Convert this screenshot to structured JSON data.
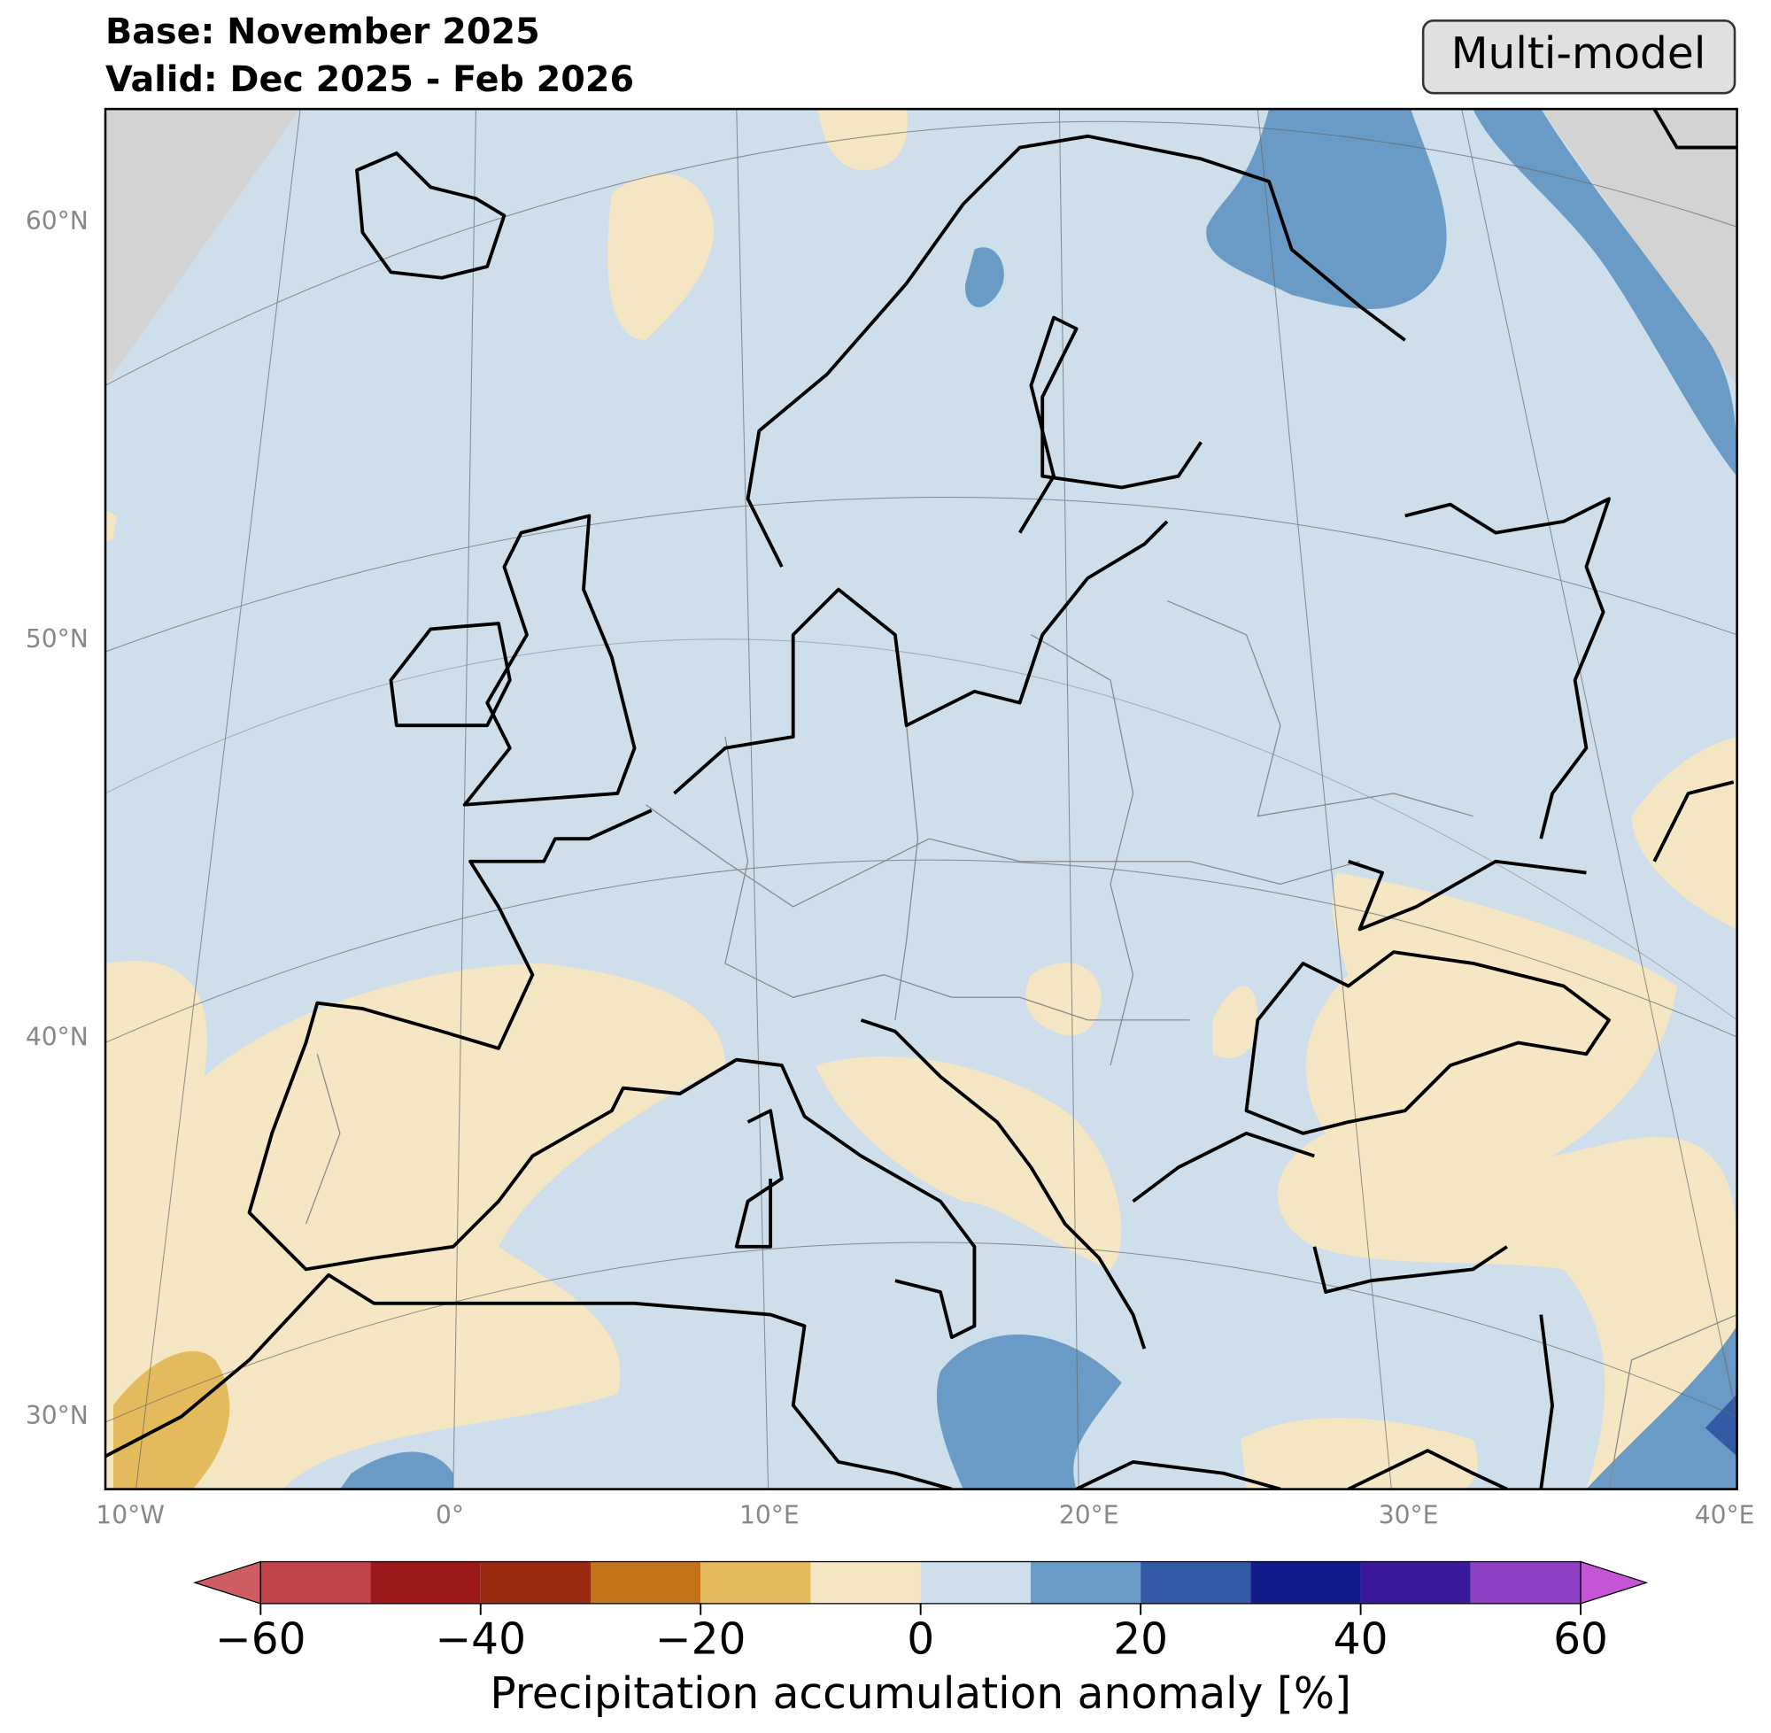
{
  "header": {
    "base": "Base: November 2025",
    "valid": "Valid: Dec 2025 - Feb 2026",
    "badge": "Multi-model"
  },
  "map": {
    "lat_labels": [
      {
        "value": 60,
        "label": "60°N"
      },
      {
        "value": 50,
        "label": "50°N"
      },
      {
        "value": 40,
        "label": "40°N"
      },
      {
        "value": 30,
        "label": "30°N"
      }
    ],
    "lon_labels": [
      {
        "value": -10,
        "label": "10°W"
      },
      {
        "value": 0,
        "label": "0°"
      },
      {
        "value": 10,
        "label": "10°E"
      },
      {
        "value": 20,
        "label": "20°E"
      },
      {
        "value": 30,
        "label": "30°E"
      },
      {
        "value": 40,
        "label": "40°E"
      }
    ]
  },
  "colorbar": {
    "label": "Precipitation accumulation anomaly [%]",
    "bounds": [
      -60,
      -50,
      -40,
      -30,
      -20,
      -10,
      0,
      10,
      20,
      30,
      40,
      50,
      60
    ],
    "colors": [
      "#c0444a",
      "#9a1a1c",
      "#9a2a10",
      "#c47418",
      "#e3bb5c",
      "#f5e6c4",
      "#cfdeeb",
      "#6a9bc6",
      "#3358a4",
      "#121a8c",
      "#3a1a9a",
      "#8e40c4"
    ],
    "under_color": "#cd5d63",
    "over_color": "#c456d6",
    "ticks": [
      {
        "value": -60,
        "label": "−60"
      },
      {
        "value": -40,
        "label": "−40"
      },
      {
        "value": -20,
        "label": "−20"
      },
      0,
      20,
      40,
      60
    ]
  }
}
